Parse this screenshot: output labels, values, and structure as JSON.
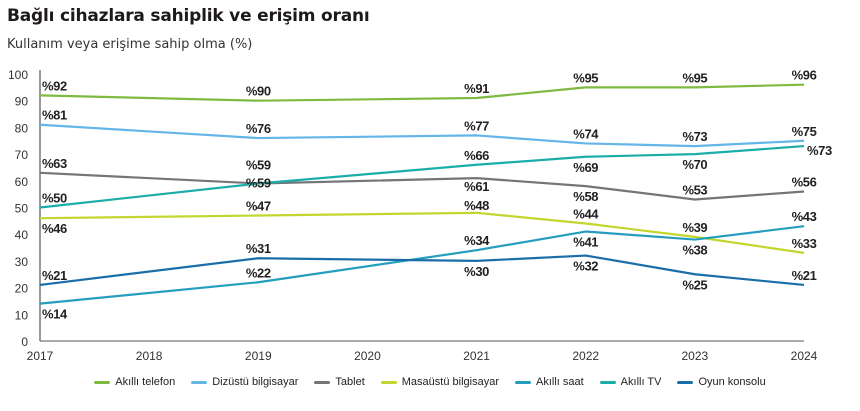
{
  "header": {
    "title": "Bağlı cihazlara sahiplik ve erişim oranı",
    "subtitle": "Kullanım veya erişime sahip olma (%)"
  },
  "chart_data": {
    "type": "line",
    "title": "Bağlı cihazlara sahiplik ve erişim oranı",
    "subtitle": "Kullanım veya erişime sahip olma (%)",
    "xlabel": "",
    "ylabel": "",
    "x_ticks": [
      "2017",
      "2018",
      "2019",
      "2020",
      "2021",
      "2022",
      "2023",
      "2024"
    ],
    "x": [
      2017,
      2019,
      2021,
      2022,
      2023,
      2024
    ],
    "ylim": [
      0,
      100
    ],
    "y_ticks": [
      0,
      10,
      20,
      30,
      40,
      50,
      60,
      70,
      80,
      90,
      100
    ],
    "grid": false,
    "legend_position": "bottom",
    "label_prefix": "%",
    "series": [
      {
        "name": "Akıllı telefon",
        "color": "#7dba3f",
        "values": [
          92,
          90,
          91,
          95,
          95,
          96
        ],
        "label_pos": [
          "above",
          "above",
          "above",
          "above",
          "above",
          "above"
        ]
      },
      {
        "name": "Dizüstü bilgisayar",
        "color": "#64b5e8",
        "values": [
          81,
          76,
          77,
          74,
          73,
          75
        ],
        "label_pos": [
          "above",
          "above",
          "above",
          "above",
          "above",
          "above"
        ]
      },
      {
        "name": "Tablet",
        "color": "#737577",
        "values": [
          63,
          59,
          61,
          58,
          53,
          56
        ],
        "label_pos": [
          "above",
          "above",
          "below",
          "below",
          "above",
          "above"
        ]
      },
      {
        "name": "Masaüstü bilgisayar",
        "color": "#c2d62d",
        "values": [
          46,
          47,
          48,
          44,
          39,
          33
        ],
        "label_pos": [
          "below",
          "above",
          "above",
          "above",
          "above",
          "above"
        ]
      },
      {
        "name": "Akıllı saat",
        "color": "#259ebd",
        "values": [
          14,
          22,
          34,
          41,
          38,
          43
        ],
        "label_pos": [
          "below",
          "above",
          "above",
          "below",
          "below",
          "above"
        ]
      },
      {
        "name": "Akıllı TV",
        "color": "#1bada8",
        "values": [
          50,
          59,
          66,
          69,
          70,
          73
        ],
        "label_pos": [
          "above",
          "above",
          "above",
          "below",
          "below",
          "right"
        ]
      },
      {
        "name": "Oyun konsolu",
        "color": "#1a6ea8",
        "values": [
          21,
          31,
          30,
          32,
          25,
          21
        ],
        "label_pos": [
          "above",
          "above",
          "below",
          "below",
          "below",
          "above"
        ]
      }
    ]
  }
}
